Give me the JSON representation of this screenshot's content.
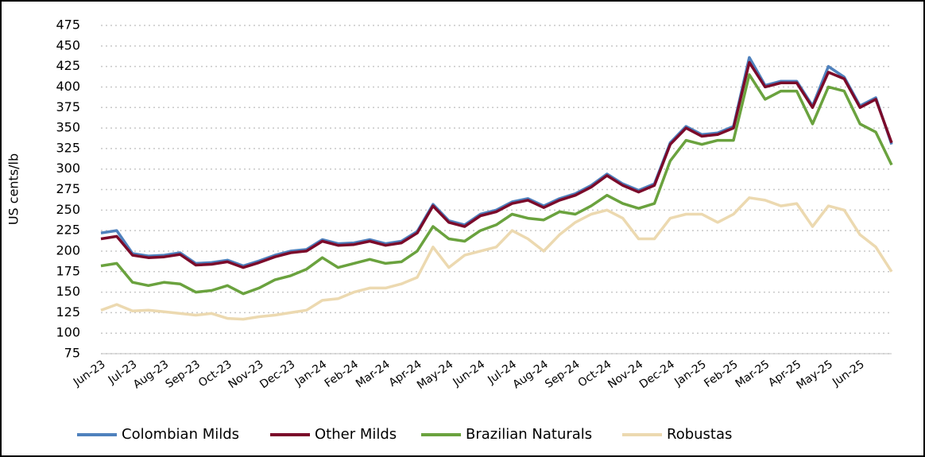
{
  "chart_data": {
    "type": "line",
    "y_label": "US cents/lb",
    "categories": [
      "Jun-23",
      null,
      "Jul-23",
      null,
      "Aug-23",
      null,
      "Sep-23",
      null,
      "Oct-23",
      null,
      "Nov-23",
      null,
      "Dec-23",
      null,
      "Jan-24",
      null,
      "Feb-24",
      null,
      "Mar-24",
      null,
      "Apr-24",
      null,
      "May-24",
      null,
      "Jun-24",
      null,
      "Jul-24",
      null,
      "Aug-24",
      null,
      "Sep-24",
      null,
      "Oct-24",
      null,
      "Nov-24",
      null,
      "Dec-24",
      null,
      "Jan-25",
      null,
      "Feb-25",
      null,
      "Mar-25",
      null,
      "Apr-25",
      null,
      "May-25",
      null,
      "Jun-25",
      null,
      null
    ],
    "series": [
      {
        "name": "Colombian Milds",
        "color": "#4f81bd",
        "values": [
          222,
          225,
          197,
          194,
          195,
          198,
          185,
          186,
          189,
          182,
          188,
          195,
          200,
          202,
          214,
          209,
          210,
          214,
          209,
          212,
          224,
          257,
          237,
          232,
          245,
          250,
          260,
          264,
          255,
          264,
          270,
          280,
          294,
          282,
          274,
          282,
          332,
          352,
          342,
          344,
          352,
          436,
          402,
          407,
          407,
          377,
          425,
          412,
          377,
          387,
          330
        ]
      },
      {
        "name": "Other Milds",
        "color": "#7b0a2a",
        "values": [
          215,
          218,
          195,
          192,
          193,
          196,
          183,
          184,
          187,
          180,
          186,
          193,
          198,
          200,
          212,
          207,
          208,
          212,
          207,
          210,
          222,
          255,
          235,
          230,
          243,
          248,
          258,
          262,
          253,
          262,
          268,
          278,
          292,
          280,
          272,
          280,
          330,
          350,
          340,
          342,
          350,
          430,
          400,
          405,
          405,
          375,
          418,
          410,
          375,
          385,
          332
        ]
      },
      {
        "name": "Brazilian Naturals",
        "color": "#6aa23e",
        "values": [
          182,
          185,
          162,
          158,
          162,
          160,
          150,
          152,
          158,
          148,
          155,
          165,
          170,
          178,
          192,
          180,
          185,
          190,
          185,
          187,
          200,
          230,
          215,
          212,
          225,
          232,
          245,
          240,
          238,
          248,
          245,
          255,
          268,
          258,
          252,
          258,
          310,
          335,
          330,
          335,
          335,
          415,
          385,
          395,
          395,
          355,
          400,
          395,
          355,
          345,
          305
        ]
      },
      {
        "name": "Robustas",
        "color": "#ecd9b0",
        "values": [
          128,
          135,
          127,
          128,
          126,
          124,
          122,
          124,
          118,
          117,
          120,
          122,
          125,
          128,
          140,
          142,
          150,
          155,
          155,
          160,
          168,
          205,
          180,
          195,
          200,
          205,
          225,
          215,
          200,
          220,
          235,
          245,
          250,
          240,
          215,
          215,
          240,
          245,
          245,
          235,
          245,
          265,
          262,
          255,
          258,
          230,
          255,
          250,
          220,
          205,
          175
        ]
      }
    ],
    "ylim": [
      75,
      475
    ],
    "yticks": [
      75,
      100,
      125,
      150,
      175,
      200,
      225,
      250,
      275,
      300,
      325,
      350,
      375,
      400,
      425,
      450,
      475
    ],
    "grid": true,
    "legend": "bottom"
  }
}
